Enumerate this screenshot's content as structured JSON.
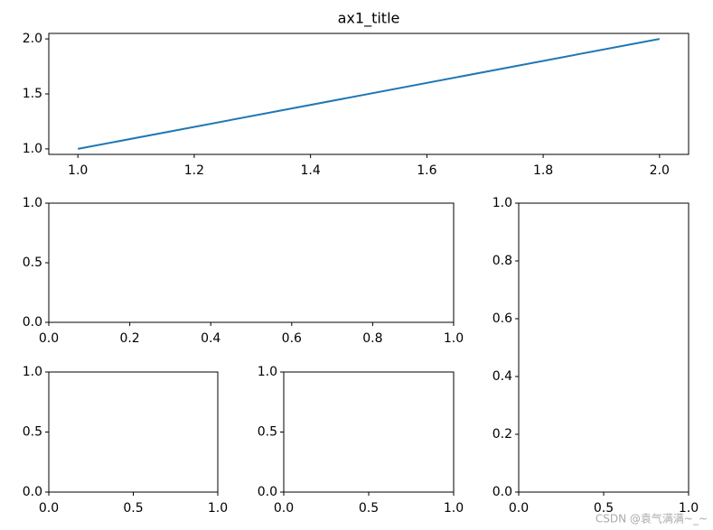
{
  "chart_data": [
    {
      "type": "line",
      "title": "ax1_title",
      "x": [
        1,
        2
      ],
      "series": [
        {
          "color": "#1f77b4",
          "values": [
            1,
            2
          ]
        }
      ],
      "xlim": [
        0.95,
        2.05
      ],
      "ylim": [
        0.95,
        2.05
      ],
      "xticks": [
        {
          "value": 1,
          "label": "1.0"
        },
        {
          "value": 1.2,
          "label": "1.2"
        },
        {
          "value": 1.4,
          "label": "1.4"
        },
        {
          "value": 1.6,
          "label": "1.6"
        },
        {
          "value": 1.8,
          "label": "1.8"
        },
        {
          "value": 2,
          "label": "2.0"
        }
      ],
      "yticks": [
        {
          "value": 1,
          "label": "1.0"
        },
        {
          "value": 1.5,
          "label": "1.5"
        },
        {
          "value": 2,
          "label": "2.0"
        }
      ]
    },
    {
      "type": "line",
      "series": [],
      "xlim": [
        0,
        1
      ],
      "ylim": [
        0,
        1
      ],
      "xticks": [
        {
          "value": 0,
          "label": "0.0"
        },
        {
          "value": 0.2,
          "label": "0.2"
        },
        {
          "value": 0.4,
          "label": "0.4"
        },
        {
          "value": 0.6,
          "label": "0.6"
        },
        {
          "value": 0.8,
          "label": "0.8"
        },
        {
          "value": 1,
          "label": "1.0"
        }
      ],
      "yticks": [
        {
          "value": 0,
          "label": "0.0"
        },
        {
          "value": 0.5,
          "label": "0.5"
        },
        {
          "value": 1,
          "label": "1.0"
        }
      ]
    },
    {
      "type": "line",
      "series": [],
      "xlim": [
        0,
        1
      ],
      "ylim": [
        0,
        1
      ],
      "xticks": [
        {
          "value": 0,
          "label": "0.0"
        },
        {
          "value": 0.5,
          "label": "0.5"
        },
        {
          "value": 1,
          "label": "1.0"
        }
      ],
      "yticks": [
        {
          "value": 0,
          "label": "0.0"
        },
        {
          "value": 0.2,
          "label": "0.2"
        },
        {
          "value": 0.4,
          "label": "0.4"
        },
        {
          "value": 0.6,
          "label": "0.6"
        },
        {
          "value": 0.8,
          "label": "0.8"
        },
        {
          "value": 1,
          "label": "1.0"
        }
      ]
    },
    {
      "type": "line",
      "series": [],
      "xlim": [
        0,
        1
      ],
      "ylim": [
        0,
        1
      ],
      "xticks": [
        {
          "value": 0,
          "label": "0.0"
        },
        {
          "value": 0.5,
          "label": "0.5"
        },
        {
          "value": 1,
          "label": "1.0"
        }
      ],
      "yticks": [
        {
          "value": 0,
          "label": "0.0"
        },
        {
          "value": 0.5,
          "label": "0.5"
        },
        {
          "value": 1,
          "label": "1.0"
        }
      ]
    },
    {
      "type": "line",
      "series": [],
      "xlim": [
        0,
        1
      ],
      "ylim": [
        0,
        1
      ],
      "xticks": [
        {
          "value": 0,
          "label": "0.0"
        },
        {
          "value": 0.5,
          "label": "0.5"
        },
        {
          "value": 1,
          "label": "1.0"
        }
      ],
      "yticks": [
        {
          "value": 0,
          "label": "0.0"
        },
        {
          "value": 0.5,
          "label": "0.5"
        },
        {
          "value": 1,
          "label": "1.0"
        }
      ]
    }
  ],
  "watermark": "CSDN @袁气满满~_~"
}
